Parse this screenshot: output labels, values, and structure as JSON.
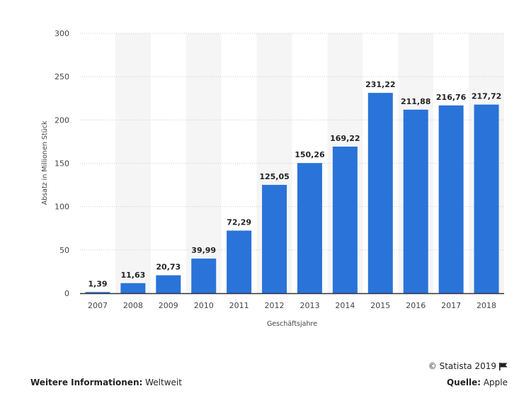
{
  "chart_data": {
    "type": "bar",
    "categories": [
      "2007",
      "2008",
      "2009",
      "2010",
      "2011",
      "2012",
      "2013",
      "2014",
      "2015",
      "2016",
      "2017",
      "2018"
    ],
    "values": [
      1.39,
      11.63,
      20.73,
      39.99,
      72.29,
      125.05,
      150.26,
      169.22,
      231.22,
      211.88,
      216.76,
      217.72
    ],
    "value_labels": [
      "1,39",
      "11,63",
      "20,73",
      "39,99",
      "72,29",
      "125,05",
      "150,26",
      "169,22",
      "231,22",
      "211,88",
      "216,76",
      "217,72"
    ],
    "yticks": [
      0,
      50,
      100,
      150,
      200,
      250,
      300
    ],
    "ylim": [
      0,
      300
    ],
    "xlabel": "Geschäftsjahre",
    "ylabel": "Absatz in Millionen Stück",
    "grid": true,
    "colors": {
      "bar": "#2a73d9",
      "band": "#f5f5f5",
      "grid": "#cccccc",
      "axis": "#333333"
    }
  },
  "footer": {
    "copyright": "© Statista 2019",
    "info_label": "Weitere Informationen:",
    "info_value": "Weltweit",
    "source_label": "Quelle:",
    "source_value": "Apple"
  },
  "icons": {
    "flag": "flag-icon"
  }
}
